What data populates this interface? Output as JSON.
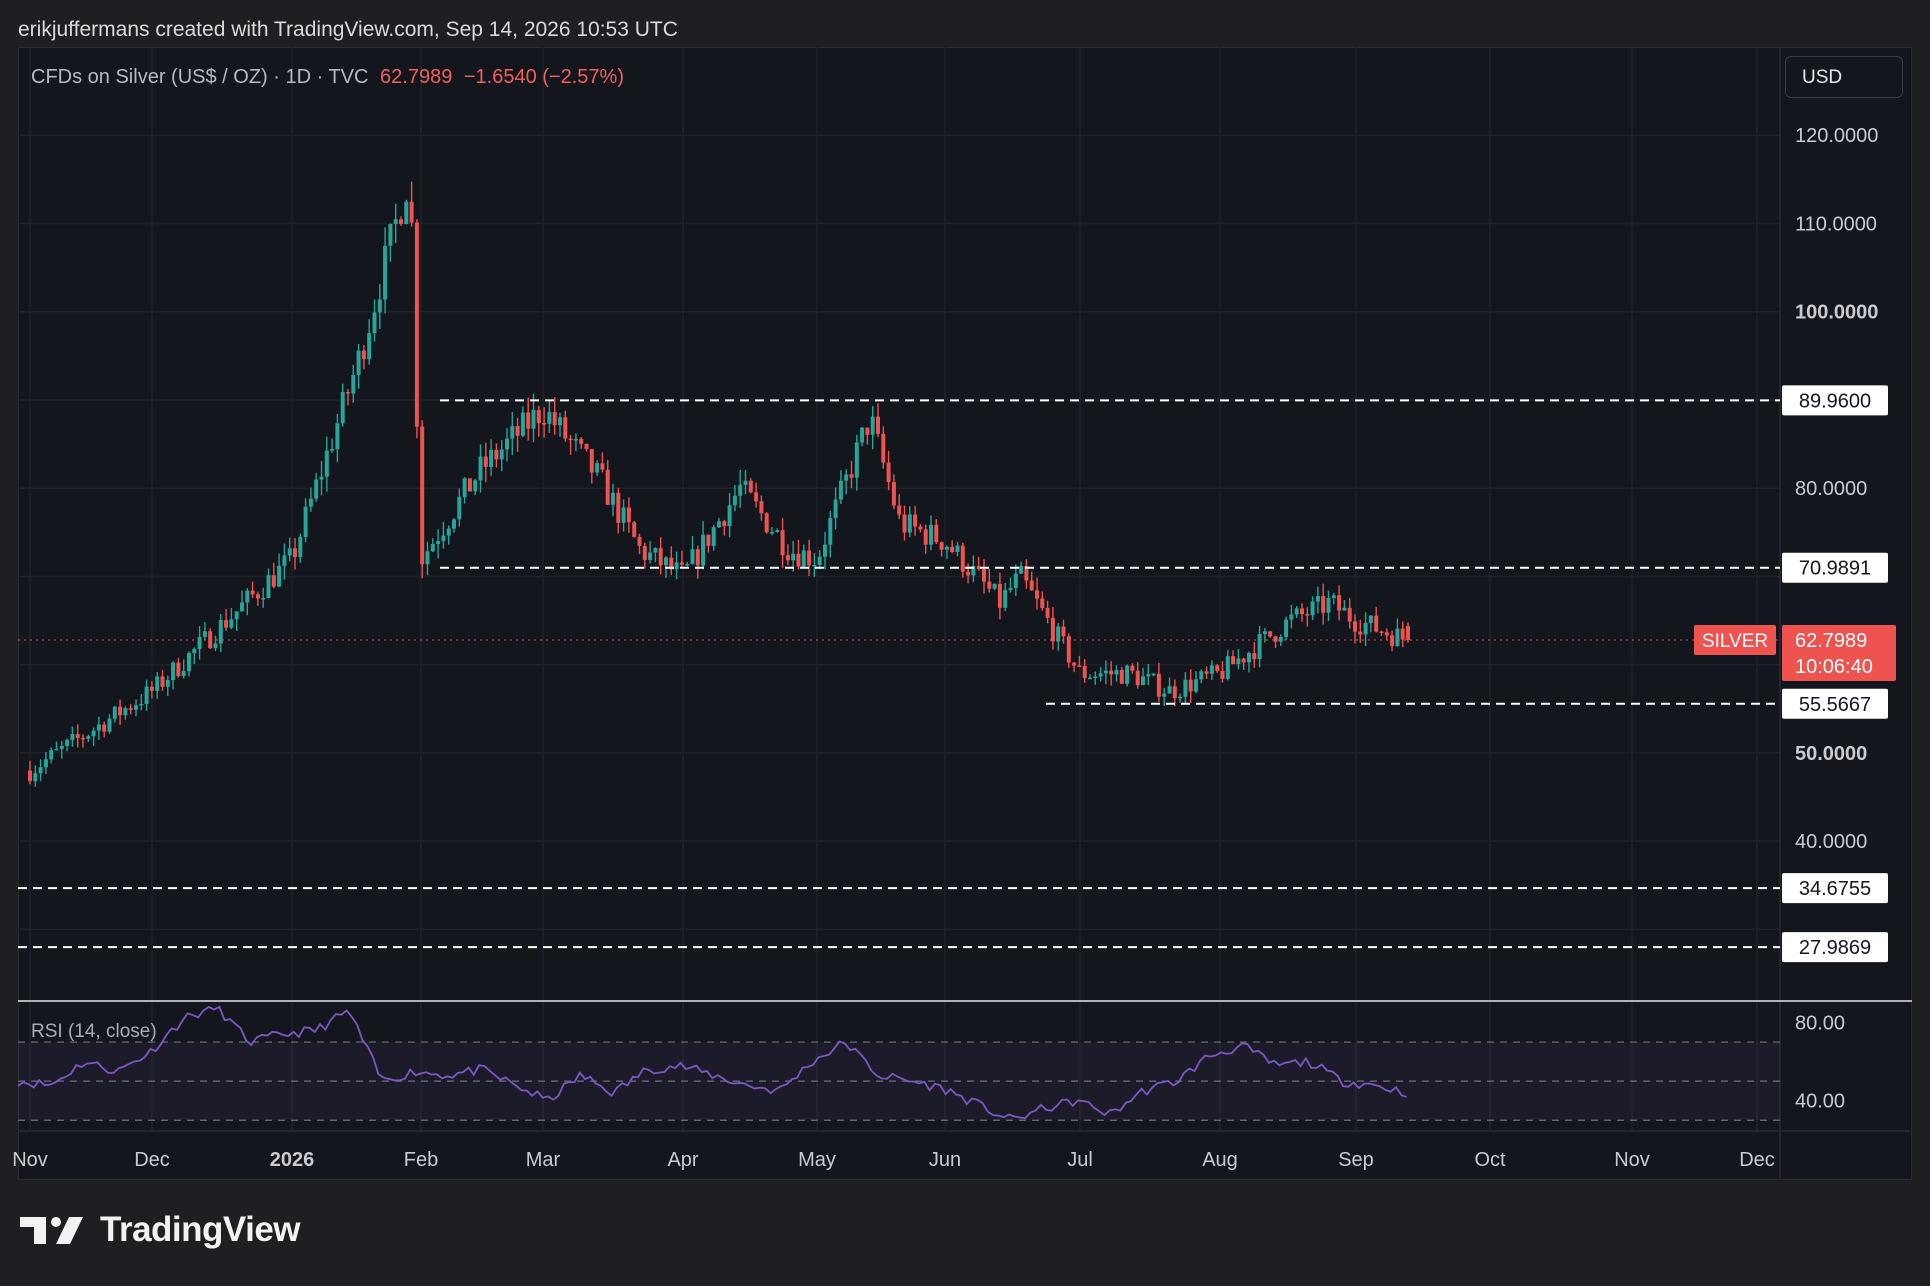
{
  "credit": "erikjuffermans created with TradingView.com, Sep 14, 2026 10:53 UTC",
  "legend": {
    "symbol": "CFDs on Silver (US$ / OZ) · 1D · TVC",
    "price": "62.7989",
    "change": "−1.6540 (−2.57%)"
  },
  "currency": "USD",
  "rsi_label": "RSI (14, close)",
  "brand": "TradingView",
  "colors": {
    "background": "#14161d",
    "up": "#26a69a",
    "down": "#ef5350",
    "rsi_line": "#7e57c2",
    "level_line": "#ffffff"
  },
  "chart_data": {
    "type": "candlestick",
    "ylim": [
      22,
      130
    ],
    "y_ticks": [
      {
        "value": 120,
        "label": "120.0000",
        "bold": false
      },
      {
        "value": 110,
        "label": "110.0000",
        "bold": false
      },
      {
        "value": 100,
        "label": "100.0000",
        "bold": true
      },
      {
        "value": 80,
        "label": "80.0000",
        "bold": false
      },
      {
        "value": 50,
        "label": "50.0000",
        "bold": true
      },
      {
        "value": 40,
        "label": "40.0000",
        "bold": false
      }
    ],
    "x_ticks": [
      {
        "label": "Nov",
        "bold": false
      },
      {
        "label": "Dec",
        "bold": false
      },
      {
        "label": "2026",
        "bold": true
      },
      {
        "label": "Feb",
        "bold": false
      },
      {
        "label": "Mar",
        "bold": false
      },
      {
        "label": "Apr",
        "bold": false
      },
      {
        "label": "May",
        "bold": false
      },
      {
        "label": "Jun",
        "bold": false
      },
      {
        "label": "Jul",
        "bold": false
      },
      {
        "label": "Aug",
        "bold": false
      },
      {
        "label": "Sep",
        "bold": false
      },
      {
        "label": "Oct",
        "bold": false
      },
      {
        "label": "Nov",
        "bold": false
      },
      {
        "label": "Dec",
        "bold": false
      }
    ],
    "levels": [
      {
        "value": 89.96,
        "label": "89.9600"
      },
      {
        "value": 70.9891,
        "label": "70.9891"
      },
      {
        "value": 55.5667,
        "label": "55.5667"
      },
      {
        "value": 34.6755,
        "label": "34.6755"
      },
      {
        "value": 27.9869,
        "label": "27.9869"
      }
    ],
    "last_price": {
      "symbol": "SILVER",
      "value": 62.7989,
      "label": "62.7989",
      "countdown": "10:06:40"
    },
    "anchors": [
      [
        "Nov",
        48
      ],
      [
        "Dec",
        57
      ],
      [
        "2026",
        72
      ],
      [
        "",
        95
      ],
      [
        "",
        116
      ],
      [
        "Feb",
        72
      ],
      [
        "",
        82
      ],
      [
        "Mar",
        89
      ],
      [
        "",
        81
      ],
      [
        "",
        73
      ],
      [
        "Apr",
        70
      ],
      [
        "",
        80
      ],
      [
        "",
        73
      ],
      [
        "May",
        72
      ],
      [
        "",
        88
      ],
      [
        "",
        76
      ],
      [
        "Jun",
        74
      ],
      [
        "",
        67
      ],
      [
        "",
        70
      ],
      [
        "Jul",
        59
      ],
      [
        "",
        59
      ],
      [
        "",
        57
      ],
      [
        "Aug",
        59
      ],
      [
        "",
        65
      ],
      [
        "",
        67
      ],
      [
        "Sep",
        65
      ],
      [
        "",
        62.8
      ]
    ],
    "rsi": {
      "ylim": [
        25,
        90
      ],
      "ticks": [
        {
          "value": 80,
          "label": "80.00"
        },
        {
          "value": 40,
          "label": "40.00"
        }
      ],
      "band": [
        30,
        70
      ],
      "mid": 50,
      "anchors": [
        50,
        48,
        60,
        55,
        65,
        82,
        88,
        70,
        74,
        76,
        86,
        50,
        55,
        53,
        56,
        48,
        40,
        53,
        44,
        56,
        58,
        53,
        48,
        45,
        60,
        70,
        53,
        50,
        46,
        38,
        30,
        36,
        40,
        33,
        45,
        50,
        63,
        68,
        58,
        60,
        50,
        48,
        44
      ]
    }
  }
}
